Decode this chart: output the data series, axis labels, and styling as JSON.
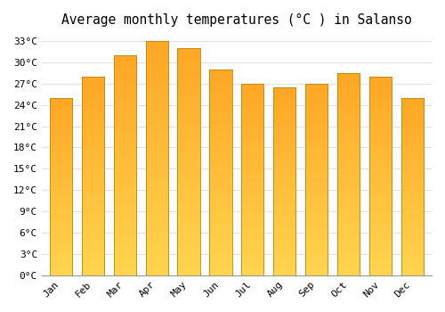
{
  "title": "Average monthly temperatures (°C ) in Salanso",
  "months": [
    "Jan",
    "Feb",
    "Mar",
    "Apr",
    "May",
    "Jun",
    "Jul",
    "Aug",
    "Sep",
    "Oct",
    "Nov",
    "Dec"
  ],
  "values": [
    25,
    28,
    31,
    33,
    32,
    29,
    27,
    26.5,
    27,
    28.5,
    28,
    25
  ],
  "bar_color_bottom": "#FFD54F",
  "bar_color_top": "#FFA726",
  "bar_edge_color": "#B8860B",
  "ylim": [
    0,
    34
  ],
  "yticks": [
    0,
    3,
    6,
    9,
    12,
    15,
    18,
    21,
    24,
    27,
    30,
    33
  ],
  "ytick_labels": [
    "0°C",
    "3°C",
    "6°C",
    "9°C",
    "12°C",
    "15°C",
    "18°C",
    "21°C",
    "24°C",
    "27°C",
    "30°C",
    "33°C"
  ],
  "bg_color": "#ffffff",
  "grid_color": "#e0e0e0",
  "title_fontsize": 10.5,
  "tick_fontsize": 8,
  "font_family": "monospace"
}
